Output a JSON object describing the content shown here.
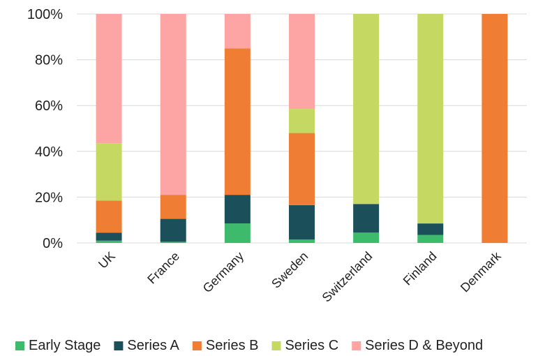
{
  "chart_data": {
    "type": "bar",
    "stacked": true,
    "percent": true,
    "categories": [
      "UK",
      "France",
      "Germany",
      "Sweden",
      "Switzerland",
      "Finland",
      "Denmark"
    ],
    "series": [
      {
        "name": "Early Stage",
        "color": "#3dba6b",
        "values": [
          1,
          0.5,
          8.5,
          1.5,
          4.5,
          3.5,
          0
        ]
      },
      {
        "name": "Series A",
        "color": "#1b4f5a",
        "values": [
          3.5,
          10,
          12.5,
          15,
          12.5,
          5,
          0
        ]
      },
      {
        "name": "Series B",
        "color": "#ef7d33",
        "values": [
          14,
          10.5,
          64,
          31.5,
          0,
          0,
          100
        ]
      },
      {
        "name": "Series C",
        "color": "#c5d962",
        "values": [
          25,
          0,
          0,
          10.5,
          83,
          91.5,
          0
        ]
      },
      {
        "name": "Series D & Beyond",
        "color": "#fda5a5",
        "values": [
          56.5,
          79,
          15,
          41.5,
          0,
          0,
          0
        ]
      }
    ],
    "yticks": [
      "0%",
      "20%",
      "40%",
      "60%",
      "80%",
      "100%"
    ],
    "ylim": [
      0,
      100
    ],
    "grid": true,
    "legend": "bottom"
  }
}
